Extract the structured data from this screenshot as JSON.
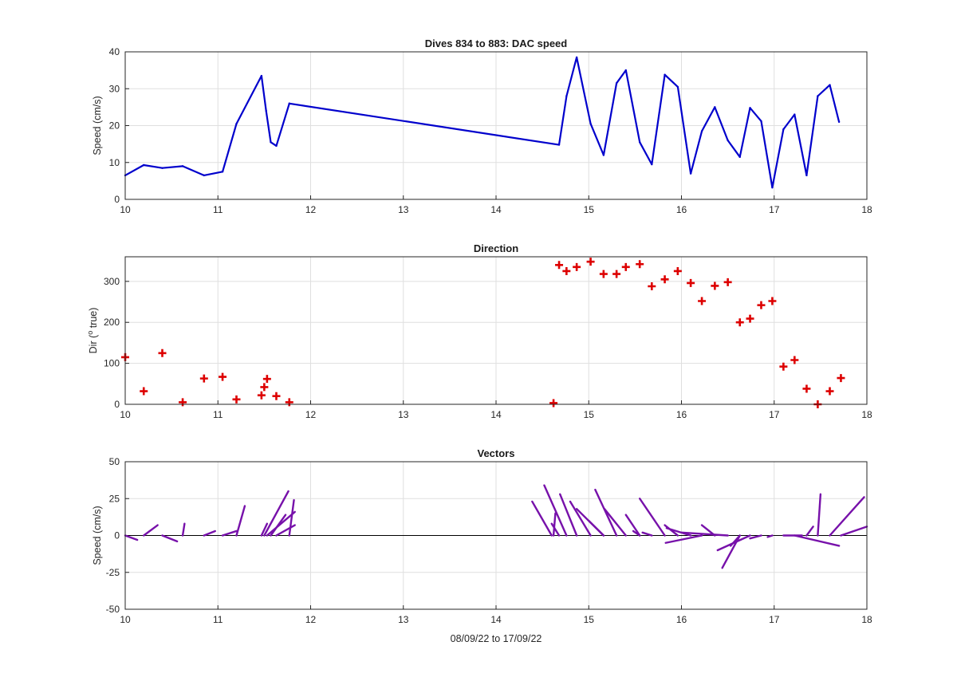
{
  "chart_data": [
    {
      "type": "line",
      "title": "Dives 834 to 883: DAC speed",
      "xlabel": "",
      "ylabel": "Speed (cm/s)",
      "xlim": [
        10,
        18
      ],
      "ylim": [
        0,
        40
      ],
      "xticks": [
        10,
        11,
        12,
        13,
        14,
        15,
        16,
        17,
        18
      ],
      "yticks": [
        0,
        10,
        20,
        30,
        40
      ],
      "grid": true,
      "color": "#0000cc",
      "series": [
        {
          "x": [
            10.0,
            10.2,
            10.4,
            10.62,
            10.85,
            11.05,
            11.2,
            11.47,
            11.52,
            11.57,
            11.63,
            11.77,
            14.68,
            14.76,
            14.87,
            15.02,
            15.16,
            15.3,
            15.4,
            15.55,
            15.68,
            15.82,
            15.96,
            16.1,
            16.22,
            16.36,
            16.5,
            16.63,
            16.74,
            16.86,
            16.98,
            17.1,
            17.22,
            17.35,
            17.47,
            17.6,
            17.7
          ],
          "y": [
            6.5,
            9.3,
            8.5,
            9.0,
            6.5,
            7.5,
            20.5,
            33.5,
            24.0,
            15.5,
            14.5,
            26.0,
            14.8,
            28.0,
            38.5,
            20.5,
            12.0,
            31.5,
            35.0,
            15.5,
            9.5,
            33.8,
            30.5,
            7.0,
            18.5,
            25.0,
            16.0,
            11.5,
            24.8,
            21.2,
            3.2,
            19.0,
            23.0,
            6.5,
            28.0,
            31.0,
            21.0
          ]
        }
      ]
    },
    {
      "type": "scatter",
      "title": "Direction",
      "xlabel": "",
      "ylabel_main": "Dir (",
      "ylabel_sup": "o",
      "ylabel_tail": " true)",
      "xlim": [
        10,
        18
      ],
      "ylim": [
        0,
        360
      ],
      "xticks": [
        10,
        11,
        12,
        13,
        14,
        15,
        16,
        17,
        18
      ],
      "yticks": [
        0,
        100,
        200,
        300
      ],
      "grid": true,
      "marker": "+",
      "color": "#dd0000",
      "series": [
        {
          "x": [
            10.0,
            10.2,
            10.4,
            10.62,
            10.85,
            11.05,
            11.2,
            11.47,
            11.5,
            11.53,
            11.63,
            11.77,
            14.62,
            14.68,
            14.76,
            14.87,
            15.02,
            15.16,
            15.3,
            15.4,
            15.55,
            15.68,
            15.82,
            15.96,
            16.1,
            16.22,
            16.36,
            16.5,
            16.63,
            16.74,
            16.86,
            16.98,
            17.1,
            17.22,
            17.35,
            17.47,
            17.6,
            17.72
          ],
          "y": [
            115,
            32,
            125,
            5,
            63,
            67,
            12,
            22,
            42,
            62,
            20,
            5,
            3,
            340,
            325,
            335,
            348,
            318,
            318,
            335,
            342,
            288,
            305,
            325,
            296,
            252,
            289,
            298,
            200,
            209,
            242,
            252,
            92,
            108,
            38,
            0,
            32,
            64
          ]
        }
      ]
    },
    {
      "type": "vectors",
      "title": "Vectors",
      "xlabel": "08/09/22 to 17/09/22",
      "ylabel": "Speed (cm/s)",
      "xlim": [
        10,
        18
      ],
      "ylim": [
        -50,
        50
      ],
      "xticks": [
        10,
        11,
        12,
        13,
        14,
        15,
        16,
        17,
        18
      ],
      "yticks": [
        -50,
        -25,
        0,
        25,
        50
      ],
      "grid": true,
      "color": "#7711aa",
      "segments": [
        {
          "x0": 10.0,
          "x1": 10.13,
          "y1": -3
        },
        {
          "x0": 10.2,
          "x1": 10.35,
          "y1": 7
        },
        {
          "x0": 10.4,
          "x1": 10.56,
          "y1": -4
        },
        {
          "x0": 10.62,
          "x1": 10.64,
          "y1": 8
        },
        {
          "x0": 10.85,
          "x1": 10.97,
          "y1": 3
        },
        {
          "x0": 11.05,
          "x1": 11.2,
          "y1": 3
        },
        {
          "x0": 11.2,
          "x1": 11.29,
          "y1": 20
        },
        {
          "x0": 11.47,
          "x1": 11.53,
          "y1": 8
        },
        {
          "x0": 11.5,
          "x1": 11.76,
          "y1": 30
        },
        {
          "x0": 11.53,
          "x1": 11.83,
          "y1": 16
        },
        {
          "x0": 11.57,
          "x1": 11.73,
          "y1": 14
        },
        {
          "x0": 11.63,
          "x1": 11.83,
          "y1": 7
        },
        {
          "x0": 11.77,
          "x1": 11.82,
          "y1": 24
        },
        {
          "x0": 14.6,
          "x1": 14.39,
          "y1": 23
        },
        {
          "x0": 14.62,
          "x1": 14.64,
          "y1": 15
        },
        {
          "x0": 14.68,
          "x1": 14.6,
          "y1": 8
        },
        {
          "x0": 14.76,
          "x1": 14.52,
          "y1": 34
        },
        {
          "x0": 14.87,
          "x1": 14.69,
          "y1": 28
        },
        {
          "x0": 15.02,
          "x1": 14.8,
          "y1": 23
        },
        {
          "x0": 15.16,
          "x1": 14.87,
          "y1": 18
        },
        {
          "x0": 15.16,
          "x1": 15.0,
          "y1": 10
        },
        {
          "x0": 15.3,
          "x1": 15.07,
          "y1": 31
        },
        {
          "x0": 15.4,
          "x1": 15.17,
          "y1": 18
        },
        {
          "x0": 15.55,
          "x1": 15.4,
          "y1": 14
        },
        {
          "x0": 15.55,
          "x1": 15.48,
          "y1": 3
        },
        {
          "x0": 15.68,
          "x1": 15.58,
          "y1": 2
        },
        {
          "x0": 15.82,
          "x1": 15.55,
          "y1": 25
        },
        {
          "x0": 15.96,
          "x1": 15.82,
          "y1": 7
        },
        {
          "x0": 16.1,
          "x1": 15.84,
          "y1": 5
        },
        {
          "x0": 16.22,
          "x1": 15.83,
          "y1": -5
        },
        {
          "x0": 16.36,
          "x1": 16.22,
          "y1": 7
        },
        {
          "x0": 16.5,
          "x1": 16.0,
          "y1": 2
        },
        {
          "x0": 16.63,
          "x1": 16.44,
          "y1": -22
        },
        {
          "x0": 16.63,
          "x1": 16.53,
          "y1": -7
        },
        {
          "x0": 16.74,
          "x1": 16.39,
          "y1": -10
        },
        {
          "x0": 16.86,
          "x1": 16.74,
          "y1": -2
        },
        {
          "x0": 16.98,
          "x1": 16.93,
          "y1": -1
        },
        {
          "x0": 17.1,
          "x1": 17.3,
          "y1": 0
        },
        {
          "x0": 17.22,
          "x1": 17.7,
          "y1": -7
        },
        {
          "x0": 17.35,
          "x1": 17.42,
          "y1": 6
        },
        {
          "x0": 17.47,
          "x1": 17.5,
          "y1": 28
        },
        {
          "x0": 17.6,
          "x1": 17.97,
          "y1": 26
        },
        {
          "x0": 17.72,
          "x1": 18.0,
          "y1": 6
        }
      ]
    }
  ]
}
